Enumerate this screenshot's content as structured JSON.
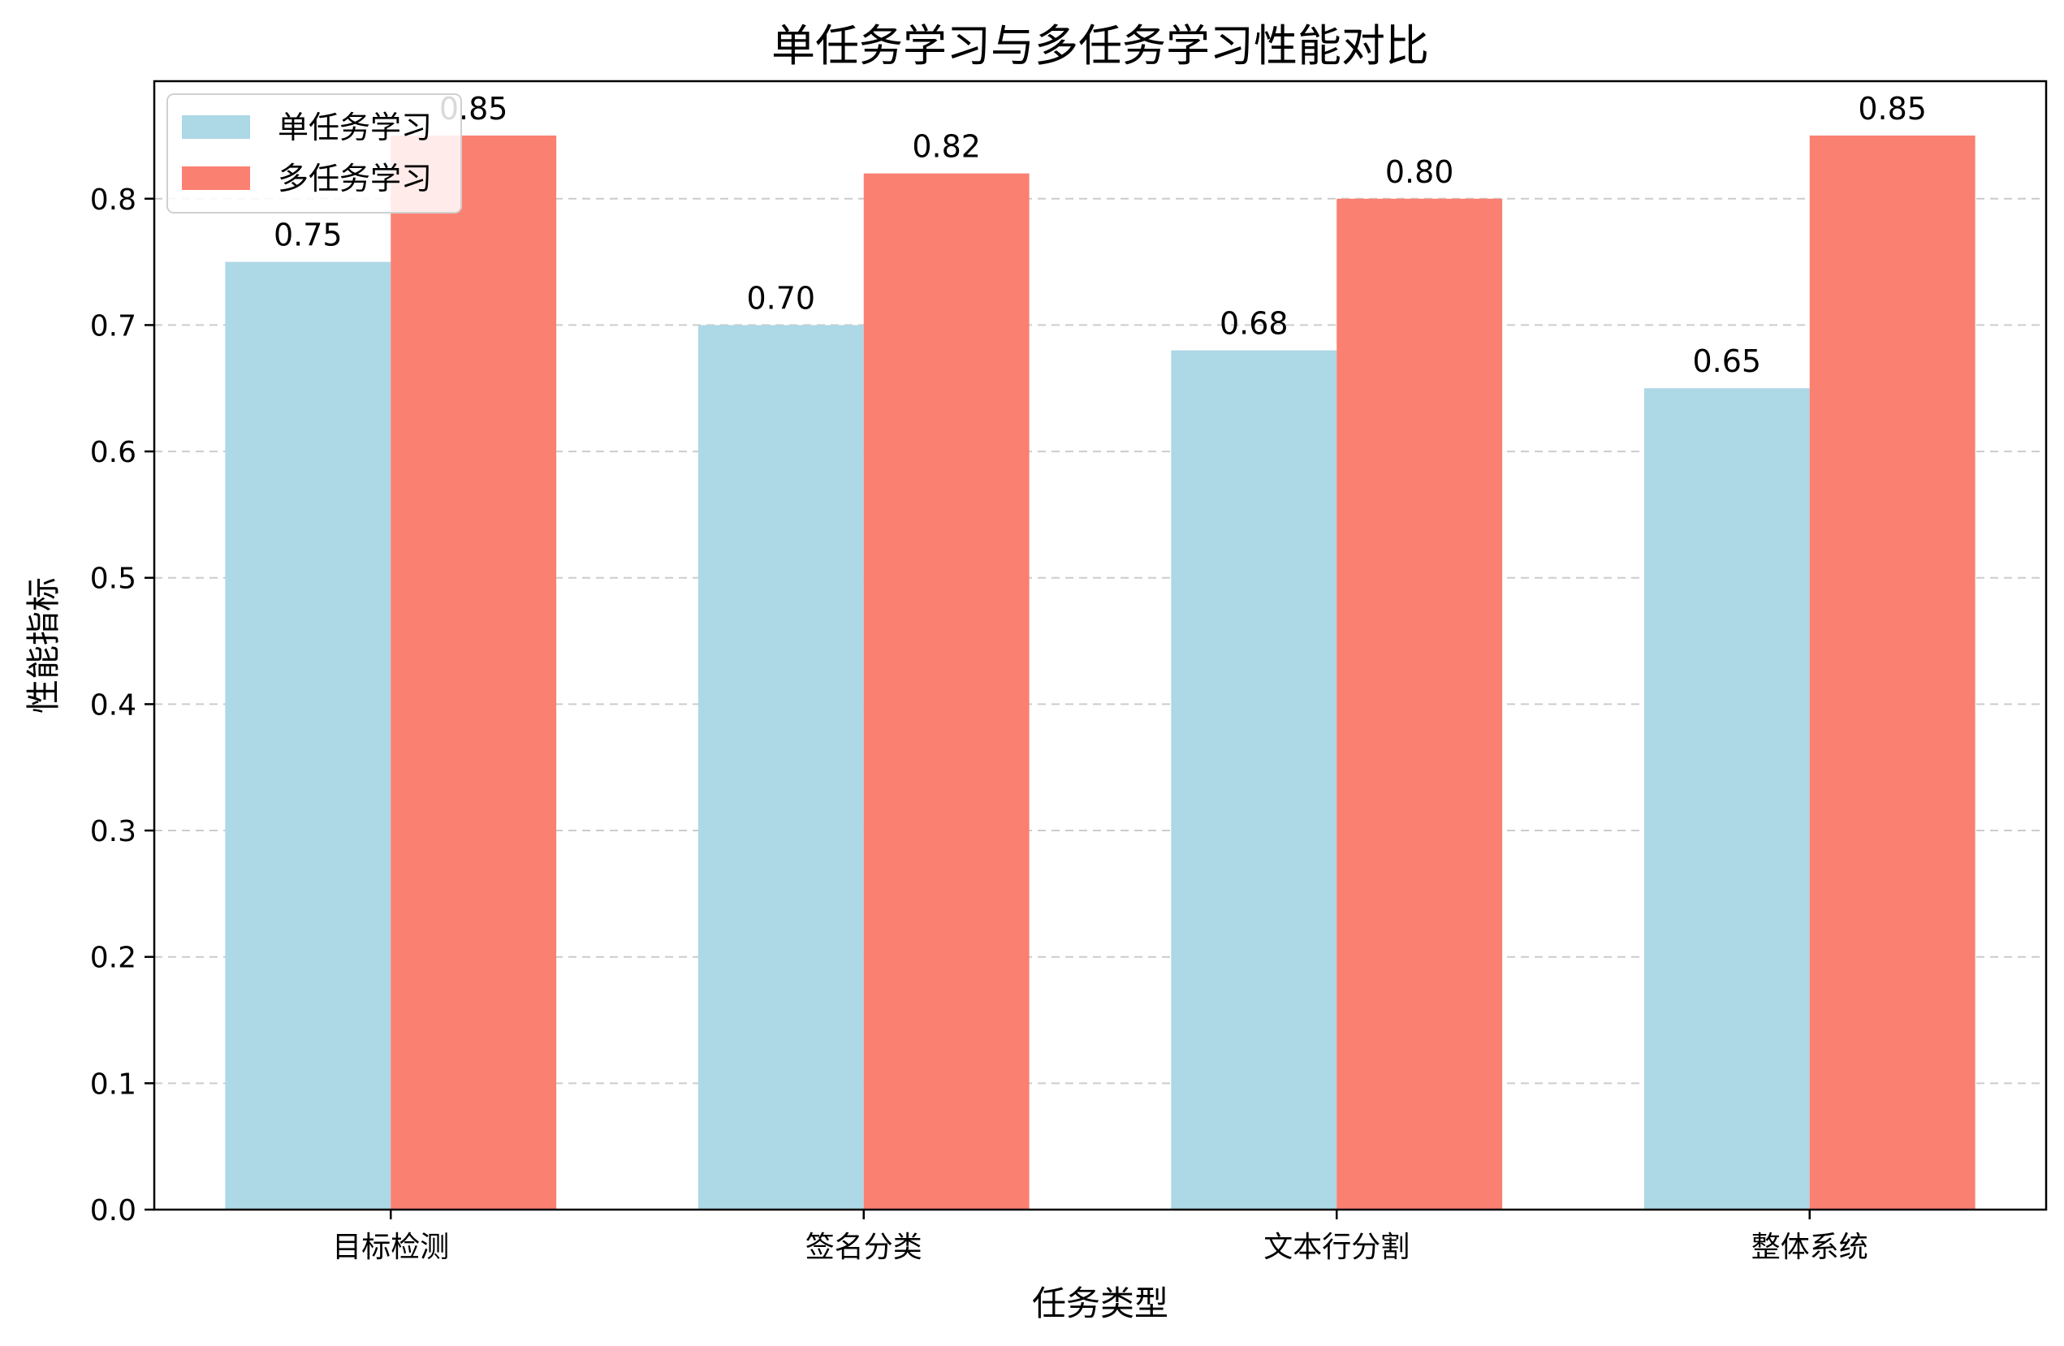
{
  "chart_data": {
    "type": "bar",
    "title": "单任务学习与多任务学习性能对比",
    "xlabel": "任务类型",
    "ylabel": "性能指标",
    "categories": [
      "目标检测",
      "签名分类",
      "文本行分割",
      "整体系统"
    ],
    "series": [
      {
        "name": "单任务学习",
        "values": [
          0.75,
          0.7,
          0.68,
          0.65
        ],
        "labels": [
          "0.75",
          "0.70",
          "0.68",
          "0.65"
        ],
        "color": "#add8e6"
      },
      {
        "name": "多任务学习",
        "values": [
          0.85,
          0.82,
          0.8,
          0.85
        ],
        "labels": [
          "0.85",
          "0.82",
          "0.80",
          "0.85"
        ],
        "color": "#fa8072"
      }
    ],
    "ylim": [
      0,
      0.893
    ],
    "yticks": [
      "0.0",
      "0.1",
      "0.2",
      "0.3",
      "0.4",
      "0.5",
      "0.6",
      "0.7",
      "0.8"
    ],
    "grid": "y-dashed",
    "legend_position": "top-left"
  }
}
